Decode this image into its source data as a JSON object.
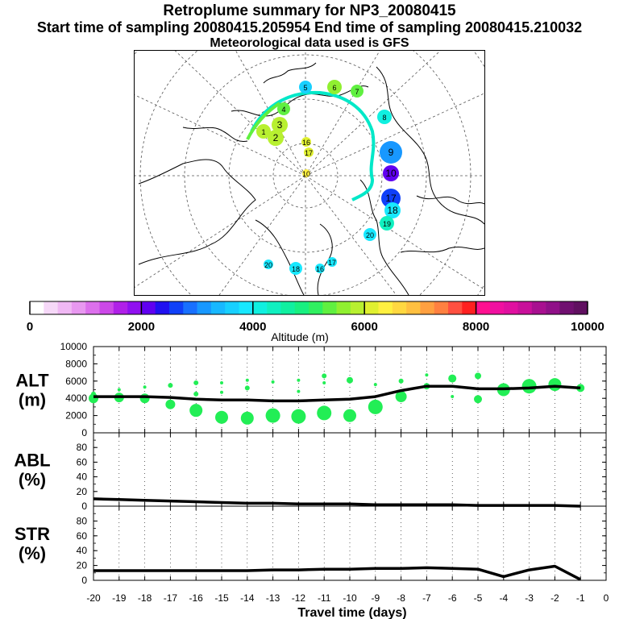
{
  "header": {
    "title": "Retroplume summary for NP3_20080415",
    "sampling": "Start time of sampling 20080415.205954     End time of sampling 20080415.210032",
    "met": "Meteorological data used is GFS"
  },
  "colors": {
    "plume": "#22ee55",
    "line": "#000000",
    "traj": "#00e8c8"
  },
  "colorbar": {
    "label": "Altitude (m)",
    "ticks": [
      "0",
      "2000",
      "4000",
      "6000",
      "8000",
      "10000"
    ],
    "colors": [
      "#ffffff",
      "#f6d8f8",
      "#f0b8f4",
      "#e898f0",
      "#dc70ec",
      "#cc48e8",
      "#b020e8",
      "#9010f0",
      "#6000f0",
      "#2010f0",
      "#1040f8",
      "#1870ff",
      "#1898ff",
      "#18b8ff",
      "#18d0ff",
      "#18e8ff",
      "#10f0e0",
      "#10f0c0",
      "#10f0a0",
      "#18f080",
      "#30f060",
      "#60f040",
      "#90f030",
      "#b8f030",
      "#e0f030",
      "#fff040",
      "#ffd840",
      "#ffc040",
      "#ffa040",
      "#ff8040",
      "#ff5040",
      "#ff2020",
      "#ff1090",
      "#f010a0",
      "#e010a0",
      "#c8109a",
      "#a81090",
      "#901088",
      "#701070",
      "#601060"
    ]
  },
  "map_markers": [
    {
      "label": "5",
      "color": "#18d0ff"
    },
    {
      "label": "6",
      "color": "#90f030"
    },
    {
      "label": "7",
      "color": "#60f040"
    },
    {
      "label": "8",
      "color": "#10f0e0"
    },
    {
      "label": "9",
      "color": "#1898ff"
    },
    {
      "label": "10",
      "color": "#6000f0"
    },
    {
      "label": "17",
      "color": "#1040f8"
    },
    {
      "label": "18",
      "color": "#18e8ff"
    },
    {
      "label": "19",
      "color": "#10f0c0"
    },
    {
      "label": "20",
      "color": "#18e8ff"
    },
    {
      "label": "18",
      "color": "#18e8ff"
    },
    {
      "label": "16",
      "color": "#18e8ff"
    },
    {
      "label": "17",
      "color": "#18e8ff"
    },
    {
      "label": "20",
      "color": "#18e8ff"
    },
    {
      "label": "4",
      "color": "#60f040"
    },
    {
      "label": "3",
      "color": "#b8f030"
    },
    {
      "label": "2",
      "color": "#b8f030"
    },
    {
      "label": "1",
      "color": "#b8f030"
    },
    {
      "label": "17",
      "color": "#e0f030"
    },
    {
      "label": "16",
      "color": "#e0f030"
    },
    {
      "label": "10",
      "color": "#fff040"
    }
  ],
  "chart_data": [
    {
      "type": "line+bubble",
      "name": "ALT",
      "ylabel": "ALT\n(m)",
      "ylabel_lines": [
        "ALT",
        "(m)"
      ],
      "ylim": [
        0,
        10000
      ],
      "yticks": [
        "0",
        "2000",
        "4000",
        "6000",
        "8000",
        "10000"
      ],
      "x": [
        -20,
        -19,
        -18,
        -17,
        -16,
        -15,
        -14,
        -13,
        -12,
        -11,
        -10,
        -9,
        -8,
        -7,
        -6,
        -5,
        -4,
        -3,
        -2,
        -1
      ],
      "line": [
        4200,
        4200,
        4200,
        4100,
        3900,
        3800,
        3800,
        3700,
        3700,
        3800,
        3900,
        4200,
        4900,
        5400,
        5400,
        5100,
        5100,
        5200,
        5400,
        5200
      ],
      "bubbles": [
        {
          "x": -20,
          "y": 4000,
          "size": 6
        },
        {
          "x": -20,
          "y": 4500,
          "size": 3
        },
        {
          "x": -19,
          "y": 4100,
          "size": 6
        },
        {
          "x": -19,
          "y": 5000,
          "size": 2
        },
        {
          "x": -18,
          "y": 4000,
          "size": 6
        },
        {
          "x": -18,
          "y": 5300,
          "size": 2
        },
        {
          "x": -17,
          "y": 3300,
          "size": 6
        },
        {
          "x": -17,
          "y": 5500,
          "size": 3
        },
        {
          "x": -16,
          "y": 2600,
          "size": 8
        },
        {
          "x": -16,
          "y": 4500,
          "size": 3
        },
        {
          "x": -16,
          "y": 5800,
          "size": 3
        },
        {
          "x": -15,
          "y": 1800,
          "size": 8
        },
        {
          "x": -15,
          "y": 4700,
          "size": 2
        },
        {
          "x": -15,
          "y": 5800,
          "size": 2
        },
        {
          "x": -14,
          "y": 1700,
          "size": 8
        },
        {
          "x": -14,
          "y": 5200,
          "size": 3
        },
        {
          "x": -14,
          "y": 6100,
          "size": 2
        },
        {
          "x": -13,
          "y": 2000,
          "size": 9
        },
        {
          "x": -13,
          "y": 3700,
          "size": 2
        },
        {
          "x": -13,
          "y": 5900,
          "size": 2
        },
        {
          "x": -12,
          "y": 1900,
          "size": 9
        },
        {
          "x": -12,
          "y": 4800,
          "size": 2
        },
        {
          "x": -12,
          "y": 6100,
          "size": 2
        },
        {
          "x": -11,
          "y": 2300,
          "size": 9
        },
        {
          "x": -11,
          "y": 5800,
          "size": 2
        },
        {
          "x": -11,
          "y": 6600,
          "size": 3
        },
        {
          "x": -10,
          "y": 2000,
          "size": 8
        },
        {
          "x": -10,
          "y": 6100,
          "size": 4
        },
        {
          "x": -9,
          "y": 3000,
          "size": 9
        },
        {
          "x": -9,
          "y": 5600,
          "size": 2
        },
        {
          "x": -8,
          "y": 4200,
          "size": 7
        },
        {
          "x": -8,
          "y": 6000,
          "size": 3
        },
        {
          "x": -7,
          "y": 5400,
          "size": 4
        },
        {
          "x": -7,
          "y": 6700,
          "size": 2
        },
        {
          "x": -6,
          "y": 6300,
          "size": 5
        },
        {
          "x": -6,
          "y": 4200,
          "size": 2
        },
        {
          "x": -5,
          "y": 6600,
          "size": 4
        },
        {
          "x": -5,
          "y": 3900,
          "size": 5
        },
        {
          "x": -4,
          "y": 5000,
          "size": 8
        },
        {
          "x": -3,
          "y": 5400,
          "size": 9
        },
        {
          "x": -2,
          "y": 5600,
          "size": 8
        },
        {
          "x": -1,
          "y": 5200,
          "size": 5
        }
      ]
    },
    {
      "type": "line",
      "name": "ABL",
      "ylabel_lines": [
        "ABL",
        "(%)"
      ],
      "ylim": [
        0,
        100
      ],
      "yticks": [
        "0",
        "20",
        "40",
        "60",
        "80"
      ],
      "x": [
        -20,
        -19,
        -18,
        -17,
        -16,
        -15,
        -14,
        -13,
        -12,
        -11,
        -10,
        -9,
        -8,
        -7,
        -6,
        -5,
        -4,
        -3,
        -2,
        -1
      ],
      "values": [
        10,
        9,
        8,
        7,
        6,
        5,
        4,
        4,
        3,
        3,
        3,
        2,
        2,
        2,
        2,
        1,
        1,
        1,
        1,
        0
      ]
    },
    {
      "type": "line",
      "name": "STR",
      "ylabel_lines": [
        "STR",
        "(%)"
      ],
      "ylim": [
        0,
        100
      ],
      "yticks": [
        "0",
        "20",
        "40",
        "60",
        "80"
      ],
      "x": [
        -20,
        -19,
        -18,
        -17,
        -16,
        -15,
        -14,
        -13,
        -12,
        -11,
        -10,
        -9,
        -8,
        -7,
        -6,
        -5,
        -4,
        -3,
        -2,
        -1
      ],
      "values": [
        13,
        13,
        13,
        13,
        13,
        13,
        13,
        14,
        14,
        15,
        15,
        16,
        16,
        17,
        16,
        15,
        5,
        14,
        19,
        1
      ],
      "xlabel": "Travel time (days)",
      "xticks": [
        "-20",
        "-19",
        "-18",
        "-17",
        "-16",
        "-15",
        "-14",
        "-13",
        "-12",
        "-11",
        "-10",
        "-9",
        "-8",
        "-7",
        "-6",
        "-5",
        "-4",
        "-3",
        "-2",
        "-1",
        "0"
      ]
    }
  ]
}
